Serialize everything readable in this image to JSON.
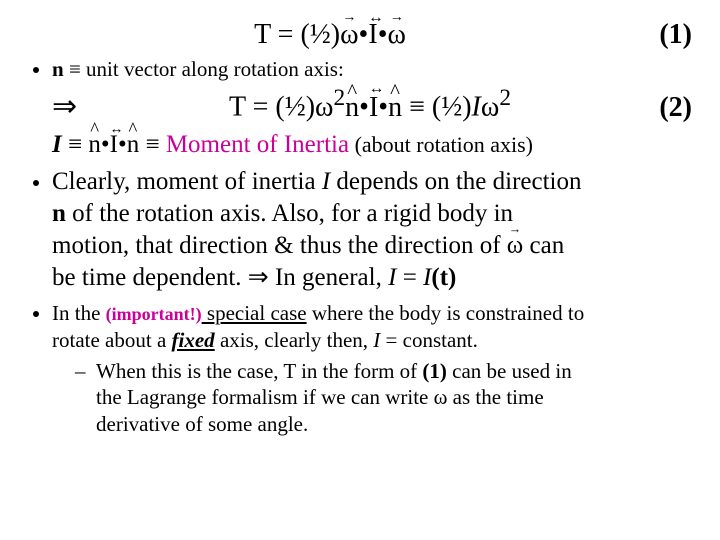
{
  "colors": {
    "text": "#000000",
    "background": "#ffffff",
    "accent": "#cc0099"
  },
  "typography": {
    "family": "Times New Roman",
    "equation_fontsize_pt": 21,
    "body_fontsize_pt": 19,
    "small_fontsize_pt": 16
  },
  "eq1": {
    "lhs": "T = (½)",
    "omega1": "ω",
    "dot1": "•",
    "I": "I",
    "dot2": "•",
    "omega2": "ω",
    "number": "(1)"
  },
  "bullet1": {
    "n": "n",
    "equiv": " ≡ ",
    "rest": "unit vector along rotation axis:"
  },
  "eq2": {
    "arrow": "⇒",
    "lhs": "T = (½)ω",
    "sq1": "2",
    "n1": "n",
    "dot1": "•",
    "I": "I",
    "dot2": "•",
    "n2": "n",
    "equiv": " ≡ (½)",
    "Iscalar": "I",
    "omega": "ω",
    "sq2": "2",
    "number": "(2)"
  },
  "moi": {
    "Ilabel": "I",
    "equiv1": " ≡ ",
    "n1": "n",
    "dot1": "•",
    "Iten": "I",
    "dot2": "•",
    "n2": "n",
    "equiv2": " ≡ ",
    "term": "Moment of Inertia",
    "paren": "  (about rotation axis)"
  },
  "bullet2": {
    "line1a": "Clearly, moment of inertia ",
    "Ia": "I",
    "line1b": " depends on the direction",
    "line2a": "n",
    "line2b": " of the rotation axis. Also, for a rigid body in",
    "line3a": "motion, that direction & thus the direction of ",
    "omega": "ω",
    "line3b": " can",
    "line4a": "be time dependent.  ",
    "arrow": "⇒",
    "line4b": " In general, ",
    "Ib": "I",
    "line4c": " = ",
    "Ic": "I",
    "line4d": "(t)"
  },
  "bullet3": {
    "a": "In the ",
    "important": "(important!)",
    "sp": " special case",
    "b": " where the body is constrained to",
    "c": "rotate about a ",
    "fixed": "fixed",
    "d": " axis, clearly then, ",
    "I": "I",
    "e": " = constant.",
    "dash1": "When this is the case, T in the form of ",
    "ref": "(1)",
    "dash2": " can be used in",
    "dash3": "the Lagrange formalism if we can write ω as the time",
    "dash4": "derivative of some angle."
  }
}
